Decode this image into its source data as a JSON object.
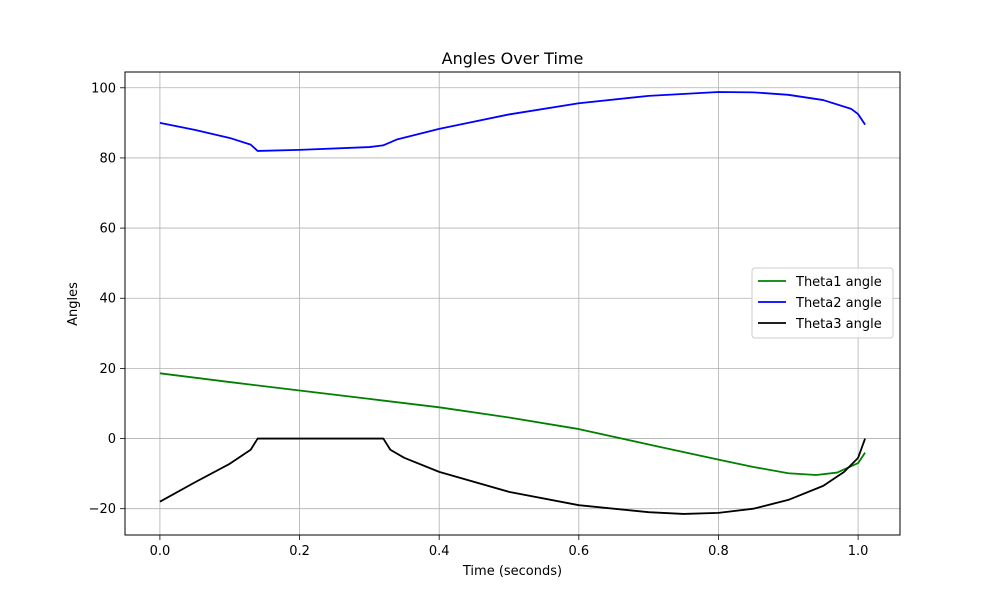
{
  "chart_data": {
    "type": "line",
    "title": "Angles Over Time",
    "xlabel": "Time (seconds)",
    "ylabel": "Angles",
    "xlim": [
      -0.05,
      1.06
    ],
    "ylim": [
      -27.5,
      104.5
    ],
    "xticks": [
      0.0,
      0.2,
      0.4,
      0.6,
      0.8,
      1.0
    ],
    "xtick_labels": [
      "0.0",
      "0.2",
      "0.4",
      "0.6",
      "0.8",
      "1.0"
    ],
    "yticks": [
      -20,
      0,
      20,
      40,
      60,
      80,
      100
    ],
    "ytick_labels": [
      "−20",
      "0",
      "20",
      "40",
      "60",
      "80",
      "100"
    ],
    "grid": true,
    "legend_position": "center-right",
    "series": [
      {
        "name": "Theta1 angle",
        "color": "#008000",
        "points": [
          [
            0.0,
            18.6
          ],
          [
            0.1,
            16.1
          ],
          [
            0.2,
            13.7
          ],
          [
            0.3,
            11.3
          ],
          [
            0.4,
            8.9
          ],
          [
            0.5,
            6.0
          ],
          [
            0.6,
            2.7
          ],
          [
            0.7,
            -1.7
          ],
          [
            0.8,
            -6.0
          ],
          [
            0.85,
            -8.1
          ],
          [
            0.9,
            -9.9
          ],
          [
            0.94,
            -10.4
          ],
          [
            0.97,
            -9.7
          ],
          [
            1.0,
            -7.0
          ],
          [
            1.01,
            -4.0
          ]
        ]
      },
      {
        "name": "Theta2 angle",
        "color": "#0000ff",
        "points": [
          [
            0.0,
            90.0
          ],
          [
            0.05,
            88.0
          ],
          [
            0.1,
            85.7
          ],
          [
            0.13,
            83.8
          ],
          [
            0.14,
            82.0
          ],
          [
            0.2,
            82.3
          ],
          [
            0.3,
            83.1
          ],
          [
            0.32,
            83.6
          ],
          [
            0.34,
            85.3
          ],
          [
            0.4,
            88.3
          ],
          [
            0.5,
            92.4
          ],
          [
            0.6,
            95.6
          ],
          [
            0.7,
            97.7
          ],
          [
            0.8,
            98.8
          ],
          [
            0.85,
            98.7
          ],
          [
            0.9,
            98.0
          ],
          [
            0.95,
            96.5
          ],
          [
            0.99,
            94.0
          ],
          [
            1.0,
            92.5
          ],
          [
            1.01,
            89.5
          ]
        ]
      },
      {
        "name": "Theta3 angle",
        "color": "#000000",
        "points": [
          [
            0.0,
            -18.0
          ],
          [
            0.05,
            -12.5
          ],
          [
            0.1,
            -7.2
          ],
          [
            0.13,
            -3.2
          ],
          [
            0.14,
            0.0
          ],
          [
            0.2,
            0.0
          ],
          [
            0.3,
            0.0
          ],
          [
            0.32,
            0.0
          ],
          [
            0.33,
            -3.2
          ],
          [
            0.35,
            -5.5
          ],
          [
            0.4,
            -9.5
          ],
          [
            0.5,
            -15.2
          ],
          [
            0.6,
            -19.0
          ],
          [
            0.7,
            -21.0
          ],
          [
            0.75,
            -21.5
          ],
          [
            0.8,
            -21.2
          ],
          [
            0.85,
            -20.0
          ],
          [
            0.9,
            -17.5
          ],
          [
            0.95,
            -13.5
          ],
          [
            0.98,
            -9.5
          ],
          [
            1.0,
            -5.5
          ],
          [
            1.01,
            0.0
          ]
        ]
      }
    ]
  }
}
